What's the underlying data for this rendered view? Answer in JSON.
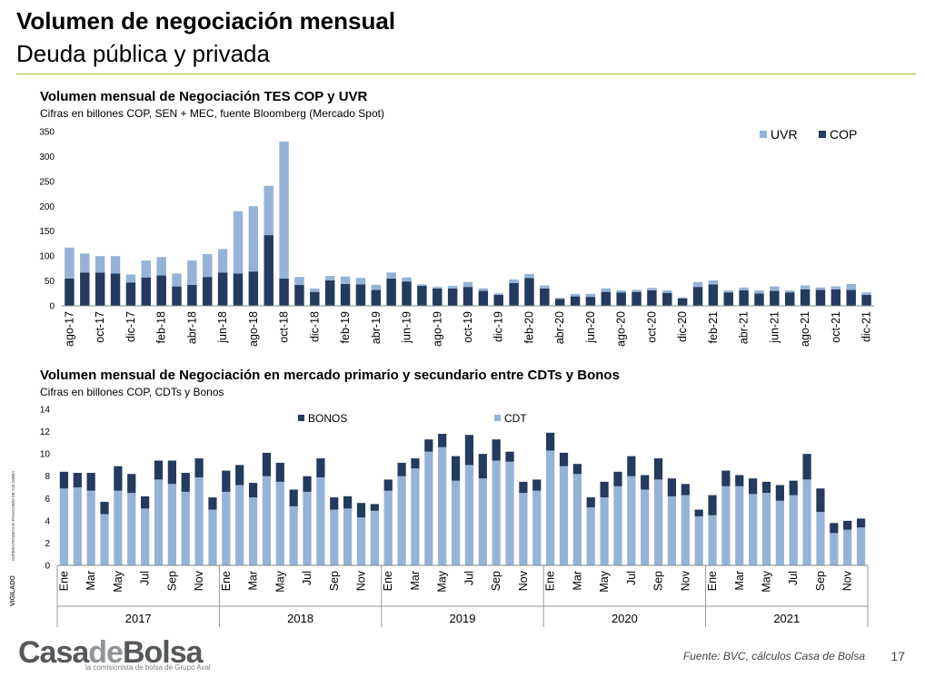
{
  "slide": {
    "title": "Volumen de negociación mensual",
    "subtitle": "Deuda pública y privada",
    "source": "Fuente: BVC, cálculos Casa de Bolsa",
    "page_number": "17"
  },
  "logo": {
    "name_part1": "Casa",
    "name_part2": "de",
    "name_part3": "Bolsa",
    "tagline": "la comisionista de bolsa de Grupo Aval"
  },
  "vigilado": {
    "text1": "VIGILADO",
    "text2": "SUPERINTENDENCIA FINANCIERA DE COLOMBIA"
  },
  "colors": {
    "dark_series": "#243a5e",
    "light_series": "#95b3d7",
    "rule": "#9ebc2c"
  },
  "chart_data": [
    {
      "type": "bar",
      "stacked": true,
      "title": "Volumen mensual de Negociación TES COP y UVR",
      "subtitle": "Cifras en billones COP, SEN + MEC, fuente Bloomberg (Mercado Spot)",
      "ylim": [
        0,
        350
      ],
      "yticks": [
        0,
        50,
        100,
        150,
        200,
        250,
        300,
        350
      ],
      "legend_position": "top-right",
      "categories": [
        "ago-17",
        "sep-17",
        "oct-17",
        "nov-17",
        "dic-17",
        "ene-18",
        "feb-18",
        "mar-18",
        "abr-18",
        "may-18",
        "jun-18",
        "jul-18",
        "ago-18",
        "sep-18",
        "oct-18",
        "nov-18",
        "dic-18",
        "ene-19",
        "feb-19",
        "mar-19",
        "abr-19",
        "may-19",
        "jun-19",
        "jul-19",
        "ago-19",
        "sep-19",
        "oct-19",
        "nov-19",
        "dic-19",
        "ene-20",
        "feb-20",
        "mar-20",
        "abr-20",
        "may-20",
        "jun-20",
        "jul-20",
        "ago-20",
        "sep-20",
        "oct-20",
        "nov-20",
        "dic-20",
        "ene-21",
        "feb-21",
        "mar-21",
        "abr-21",
        "may-21",
        "jun-21",
        "jul-21",
        "ago-21",
        "sep-21",
        "oct-21",
        "nov-21",
        "dic-21"
      ],
      "tick_labels": [
        "ago-17",
        "oct-17",
        "dic-17",
        "feb-18",
        "abr-18",
        "jun-18",
        "ago-18",
        "oct-18",
        "dic-18",
        "feb-19",
        "abr-19",
        "jun-19",
        "ago-19",
        "oct-19",
        "dic-19",
        "feb-20",
        "abr-20",
        "jun-20",
        "ago-20",
        "oct-20",
        "dic-20",
        "feb-21",
        "abr-21",
        "jun-21",
        "ago-21",
        "oct-21",
        "dic-21"
      ],
      "series": [
        {
          "name": "COP",
          "color": "#243a5e",
          "values": [
            55,
            67,
            67,
            65,
            47,
            57,
            61,
            39,
            42,
            58,
            67,
            65,
            69,
            142,
            55,
            42,
            28,
            51,
            44,
            43,
            32,
            55,
            49,
            40,
            35,
            35,
            38,
            30,
            22,
            46,
            56,
            35,
            14,
            19,
            18,
            28,
            27,
            28,
            31,
            26,
            15,
            38,
            43,
            27,
            31,
            25,
            30,
            27,
            33,
            32,
            33,
            32,
            22
          ]
        },
        {
          "name": "UVR",
          "color": "#95b3d7",
          "values": [
            62,
            38,
            33,
            35,
            16,
            34,
            37,
            26,
            49,
            46,
            47,
            125,
            131,
            99,
            275,
            16,
            7,
            9,
            15,
            13,
            10,
            12,
            8,
            3,
            3,
            5,
            10,
            5,
            3,
            7,
            8,
            6,
            2,
            5,
            6,
            7,
            4,
            4,
            5,
            5,
            2,
            10,
            8,
            4,
            6,
            6,
            9,
            4,
            8,
            5,
            6,
            12,
            5
          ]
        }
      ]
    },
    {
      "type": "bar",
      "stacked": true,
      "title": "Volumen mensual de Negociación en mercado primario y secundario entre CDTs y Bonos",
      "subtitle": "Cifras en billones COP, CDTs y Bonos",
      "ylim": [
        0,
        14
      ],
      "yticks": [
        0,
        2,
        4,
        6,
        8,
        10,
        12,
        14
      ],
      "legend_position": "top",
      "month_labels": [
        "Ene",
        "Mar",
        "May",
        "Jul",
        "Sep",
        "Nov"
      ],
      "years": [
        "2017",
        "2018",
        "2019",
        "2020",
        "2021"
      ],
      "series": [
        {
          "name": "CDT",
          "color": "#95b3d7",
          "values": [
            6.9,
            7.0,
            6.7,
            4.6,
            6.7,
            6.5,
            5.1,
            7.7,
            7.3,
            6.6,
            7.9,
            5.0,
            6.6,
            7.2,
            6.1,
            8.0,
            7.5,
            5.3,
            6.6,
            7.9,
            5.0,
            5.1,
            4.3,
            4.9,
            6.7,
            8.0,
            8.7,
            10.2,
            10.6,
            7.6,
            9.0,
            7.8,
            9.4,
            9.3,
            6.5,
            6.7,
            10.3,
            8.9,
            8.2,
            5.2,
            6.1,
            7.1,
            8.0,
            6.8,
            7.7,
            6.2,
            6.3,
            4.4,
            4.5,
            7.1,
            7.1,
            6.4,
            6.5,
            5.8,
            6.3,
            7.7,
            4.8,
            2.9,
            3.2,
            3.4
          ]
        },
        {
          "name": "BONOS",
          "color": "#243a5e",
          "values": [
            1.5,
            1.3,
            1.6,
            1.1,
            2.2,
            1.7,
            1.1,
            1.7,
            2.1,
            1.7,
            1.7,
            1.1,
            1.9,
            1.8,
            1.3,
            2.1,
            1.7,
            1.5,
            1.4,
            1.7,
            1.1,
            1.1,
            1.3,
            0.6,
            1.0,
            1.2,
            0.9,
            1.1,
            1.2,
            2.2,
            2.7,
            2.2,
            1.9,
            0.9,
            1.0,
            1.0,
            1.6,
            1.2,
            0.9,
            0.9,
            1.4,
            1.3,
            1.8,
            1.3,
            1.9,
            1.6,
            1.0,
            0.6,
            1.8,
            1.4,
            1.0,
            1.4,
            1.0,
            1.4,
            1.3,
            2.3,
            2.1,
            0.9,
            0.8,
            0.8
          ]
        }
      ]
    }
  ]
}
